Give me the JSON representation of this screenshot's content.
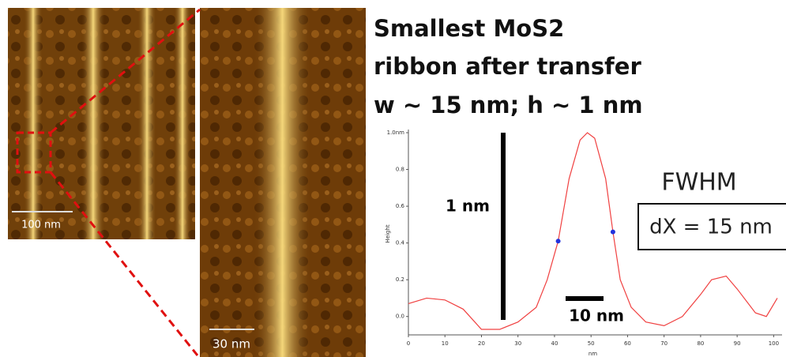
{
  "figure": {
    "title_lines": [
      "Smallest MoS2",
      "ribbon after transfer",
      "w ~ 15 nm; h ~ 1 nm"
    ],
    "overview_scale_label": "100 nm",
    "zoom_scale_label": "30 nm"
  },
  "chart_data": {
    "type": "line",
    "x_label": "nm",
    "y_label": "Height",
    "x": [
      0,
      5,
      10,
      15,
      20,
      25,
      30,
      35,
      38,
      41,
      44,
      47,
      49,
      51,
      54,
      56,
      58,
      61,
      65,
      70,
      75,
      80,
      83,
      87,
      90,
      95,
      98,
      101
    ],
    "values": [
      0.07,
      0.1,
      0.09,
      0.04,
      -0.07,
      -0.07,
      -0.03,
      0.05,
      0.2,
      0.41,
      0.75,
      0.96,
      1.0,
      0.97,
      0.75,
      0.46,
      0.2,
      0.05,
      -0.03,
      -0.05,
      0.0,
      0.12,
      0.2,
      0.22,
      0.15,
      0.02,
      0.0,
      0.1
    ],
    "color": "#f04040",
    "markers": {
      "x": [
        41,
        56
      ],
      "values": [
        0.41,
        0.46
      ],
      "color": "#2233dd"
    },
    "xlim": [
      0,
      101
    ],
    "ylim": [
      -0.1,
      1.0
    ],
    "xticks": [
      0,
      10,
      20,
      30,
      40,
      50,
      60,
      70,
      80,
      90,
      100
    ],
    "yticks": [
      {
        "value": 0,
        "label": "0.0"
      },
      0.2,
      0.4,
      0.6,
      0.8,
      {
        "value": 1.0,
        "label": "1.0nm"
      }
    ],
    "height_bar_label": "1 nm",
    "width_bar_label": "10 nm",
    "fwhm_label": "FWHM",
    "fwhm_value": "dX = 15 nm"
  }
}
